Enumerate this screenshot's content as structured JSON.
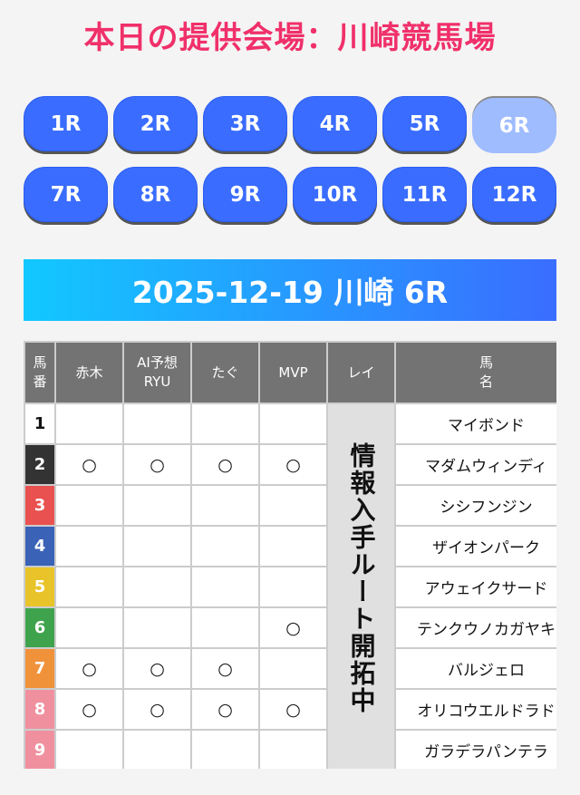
{
  "page_title": "本日の提供会場：川崎競馬場",
  "races": [
    {
      "label": "1R",
      "active": false
    },
    {
      "label": "2R",
      "active": false
    },
    {
      "label": "3R",
      "active": false
    },
    {
      "label": "4R",
      "active": false
    },
    {
      "label": "5R",
      "active": false
    },
    {
      "label": "6R",
      "active": true
    },
    {
      "label": "7R",
      "active": false
    },
    {
      "label": "8R",
      "active": false
    },
    {
      "label": "9R",
      "active": false
    },
    {
      "label": "10R",
      "active": false
    },
    {
      "label": "11R",
      "active": false
    },
    {
      "label": "12R",
      "active": false
    }
  ],
  "banner": "2025-12-19 川崎 6R",
  "table": {
    "headers": [
      "馬\n番",
      "赤木",
      "AI予想\nRYU",
      "たぐ",
      "MVP",
      "レイ",
      "馬\n名"
    ],
    "rei_note": "情報入手ルート開拓中",
    "rows": [
      {
        "num": "1",
        "bg": "#ffffff",
        "fg": "#111111",
        "marks": [
          "",
          "",
          "",
          ""
        ],
        "name": "マイボンド"
      },
      {
        "num": "2",
        "bg": "#333333",
        "fg": "#ffffff",
        "marks": [
          "○",
          "○",
          "○",
          "○"
        ],
        "name": "マダムウィンディ"
      },
      {
        "num": "3",
        "bg": "#e8514f",
        "fg": "#ffffff",
        "marks": [
          "",
          "",
          "",
          ""
        ],
        "name": "シシフンジン"
      },
      {
        "num": "4",
        "bg": "#3a62b6",
        "fg": "#ffffff",
        "marks": [
          "",
          "",
          "",
          ""
        ],
        "name": "ザイオンパーク"
      },
      {
        "num": "5",
        "bg": "#e8c42a",
        "fg": "#ffffff",
        "marks": [
          "",
          "",
          "",
          ""
        ],
        "name": "アウェイクサード"
      },
      {
        "num": "6",
        "bg": "#3fa34d",
        "fg": "#ffffff",
        "marks": [
          "",
          "",
          "",
          "○"
        ],
        "name": "テンクウノカガヤキ"
      },
      {
        "num": "7",
        "bg": "#f0923a",
        "fg": "#ffffff",
        "marks": [
          "○",
          "○",
          "○",
          ""
        ],
        "name": "バルジェロ"
      },
      {
        "num": "8",
        "bg": "#f0909f",
        "fg": "#ffffff",
        "marks": [
          "○",
          "○",
          "○",
          "○"
        ],
        "name": "オリコウエルドラド"
      },
      {
        "num": "9",
        "bg": "#f0909f",
        "fg": "#ffffff",
        "marks": [
          "",
          "",
          "",
          ""
        ],
        "name": "ガラデラパンテラ"
      }
    ]
  },
  "colors": {
    "title": "#f0306a",
    "race_button": "#3a6dff",
    "race_button_active": "#9fbcff"
  }
}
